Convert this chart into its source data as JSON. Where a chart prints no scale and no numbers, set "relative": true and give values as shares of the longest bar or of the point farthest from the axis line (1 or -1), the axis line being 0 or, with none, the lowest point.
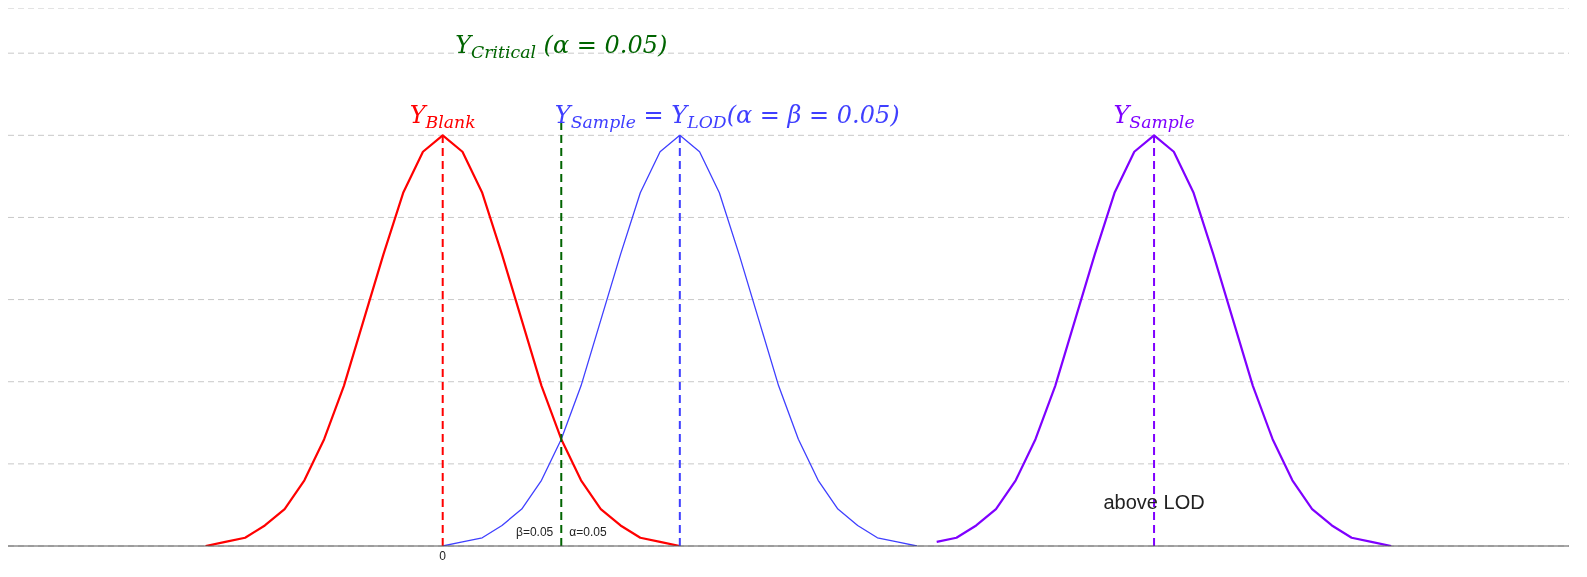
{
  "chart_data": {
    "type": "line",
    "relative": true,
    "grid": "y",
    "marker": "none",
    "line_style": "solid",
    "categories": [
      null,
      null,
      null,
      null,
      null,
      null,
      null,
      null,
      null,
      null,
      null,
      null,
      null,
      null,
      null,
      null,
      null,
      null,
      null,
      null,
      null,
      null,
      null,
      null,
      null,
      null,
      null,
      null,
      null,
      null,
      null,
      null,
      null,
      null,
      null,
      null,
      null,
      null,
      null,
      null,
      null,
      null,
      null,
      null,
      null,
      null,
      null,
      null,
      null,
      null,
      null,
      null,
      null,
      null,
      null,
      null,
      null,
      null,
      null,
      null,
      null,
      null,
      null,
      null,
      null,
      null,
      null,
      null,
      null,
      null,
      null,
      null,
      null,
      null,
      null,
      null,
      null,
      null,
      null,
      null
    ],
    "series": [
      {
        "name": "Y$_{Blank}$",
        "color": "#ff0000",
        "values": [
          null,
          null,
          null,
          null,
          null,
          null,
          null,
          null,
          null,
          null,
          0,
          0.01,
          0.02,
          0.05,
          0.09,
          0.16,
          0.26,
          0.39,
          0.55,
          0.71,
          0.86,
          0.96,
          1,
          0.96,
          0.86,
          0.71,
          0.55,
          0.39,
          0.26,
          0.16,
          0.09,
          0.05,
          0.02,
          0.01,
          0,
          null,
          null,
          null,
          null,
          null,
          null,
          null,
          null,
          null,
          null,
          null,
          null,
          null,
          null,
          null,
          null,
          null,
          null,
          null,
          null,
          null,
          null,
          null,
          null,
          null,
          null,
          null,
          null,
          null,
          null,
          null,
          null,
          null,
          null,
          null,
          null,
          null,
          null,
          null,
          null,
          null,
          null,
          null,
          null,
          null
        ]
      },
      {
        "name": "Y$_{Sample}$ = Y$_{LOD}$(α = β = 0.05)",
        "color": "#3f3fff",
        "values": [
          null,
          null,
          null,
          null,
          null,
          null,
          null,
          null,
          null,
          null,
          null,
          null,
          null,
          null,
          null,
          null,
          null,
          null,
          null,
          null,
          null,
          null,
          0,
          0.01,
          0.02,
          0.05,
          0.09,
          0.16,
          0.26,
          0.39,
          0.55,
          0.71,
          0.86,
          0.96,
          1,
          0.96,
          0.86,
          0.71,
          0.55,
          0.39,
          0.26,
          0.16,
          0.09,
          0.05,
          0.02,
          0.01,
          0,
          null,
          null,
          null,
          null,
          null,
          null,
          null,
          null,
          null,
          null,
          null,
          null,
          null,
          null,
          null,
          null,
          null,
          null,
          null,
          null,
          null,
          null,
          null,
          null,
          null,
          null,
          null,
          null,
          null,
          null,
          null,
          null,
          null
        ]
      },
      {
        "name": "Y$_{Sample}$",
        "color": "#7f00ff",
        "values": [
          null,
          null,
          null,
          null,
          null,
          null,
          null,
          null,
          null,
          null,
          null,
          null,
          null,
          null,
          null,
          null,
          null,
          null,
          null,
          null,
          null,
          null,
          null,
          null,
          null,
          null,
          null,
          null,
          null,
          null,
          null,
          null,
          null,
          null,
          null,
          null,
          null,
          null,
          null,
          null,
          null,
          null,
          null,
          null,
          null,
          null,
          null,
          0.01,
          0.02,
          0.05,
          0.09,
          0.16,
          0.26,
          0.39,
          0.55,
          0.71,
          0.86,
          0.96,
          1,
          0.96,
          0.86,
          0.71,
          0.55,
          0.39,
          0.26,
          0.16,
          0.09,
          0.05,
          0.02,
          0.01,
          0,
          null,
          null,
          null,
          null,
          null,
          null,
          null,
          null,
          null
        ]
      }
    ],
    "annotations": [
      "Y$_{Critical}$ (α = 0.05)",
      "β=0.05",
      "α=0.05",
      "above LOD",
      "0"
    ]
  }
}
